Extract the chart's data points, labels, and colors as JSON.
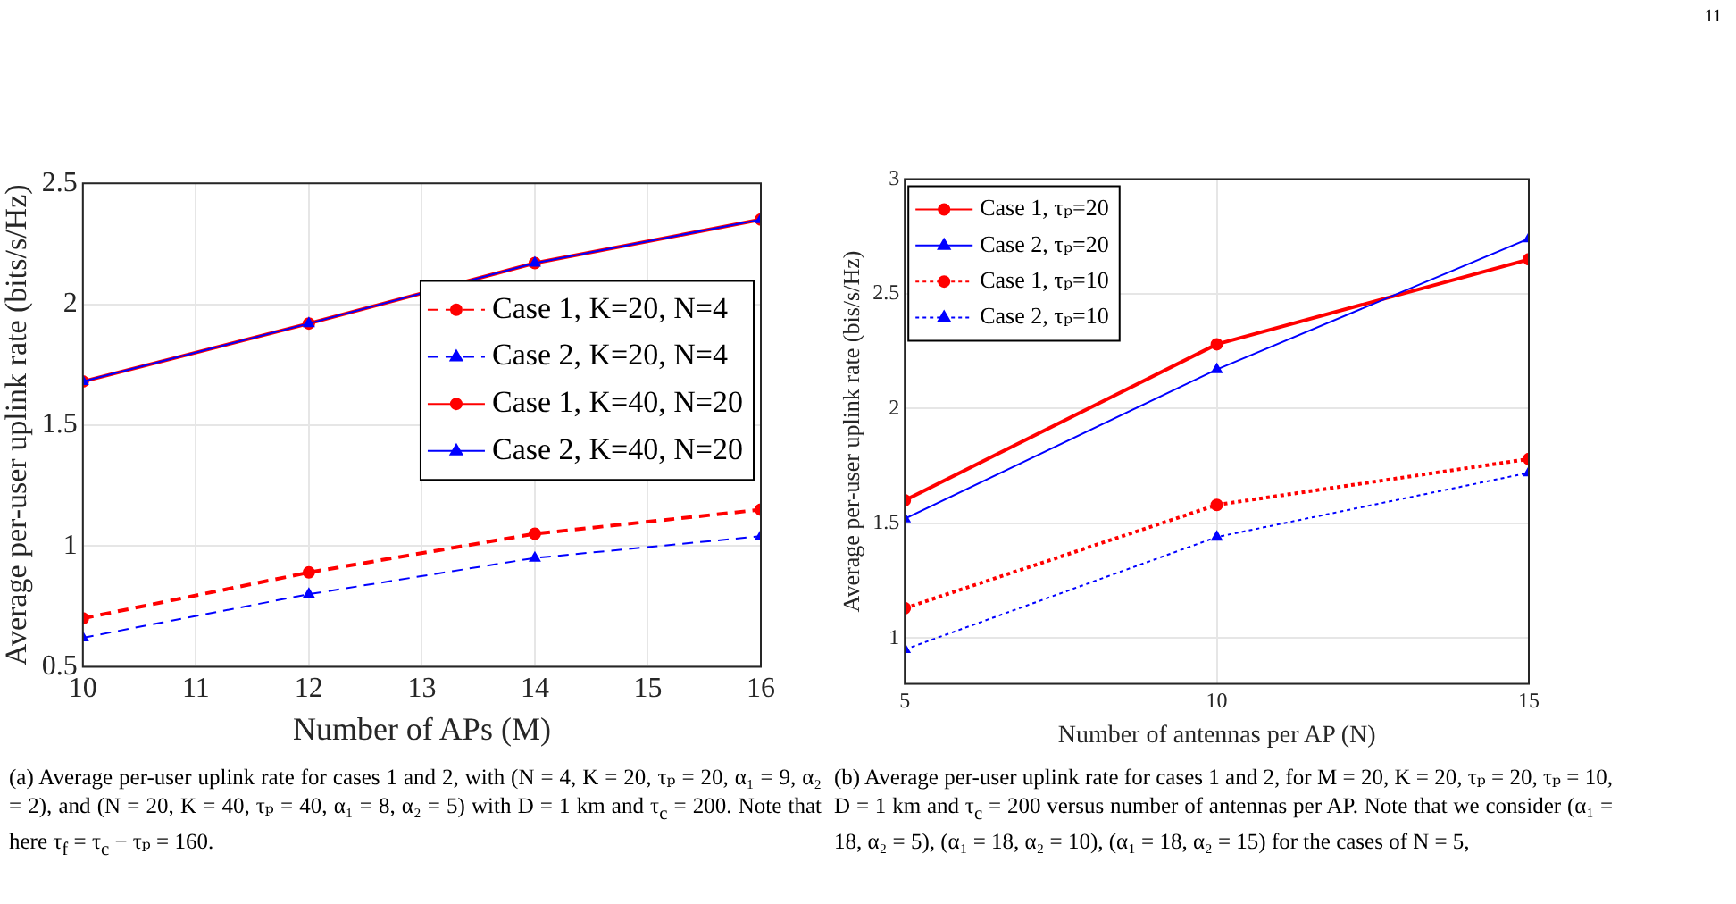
{
  "chart_data": [
    {
      "type": "line",
      "xlabel": "Number of APs (M)",
      "ylabel": "Average per-user uplink rate (bits/s/Hz)",
      "x": [
        10,
        12,
        14,
        16
      ],
      "xlim": [
        10,
        16
      ],
      "xticks": [
        10,
        11,
        12,
        13,
        14,
        15,
        16
      ],
      "ylim": [
        0.5,
        2.5
      ],
      "yticks": [
        0.5,
        1,
        1.5,
        2,
        2.5
      ],
      "grid": true,
      "legend": "right",
      "series": [
        {
          "name": "Case 1, K=20, N=4",
          "color": "#ff0000",
          "values": [
            0.7,
            0.89,
            1.05,
            1.15
          ],
          "marker": "circle",
          "line_style": "dashed"
        },
        {
          "name": "Case 2, K=20, N=4",
          "color": "#0000ff",
          "values": [
            0.62,
            0.8,
            0.95,
            1.04
          ],
          "marker": "triangle",
          "line_style": "dashed"
        },
        {
          "name": "Case 1, K=40, N=20",
          "color": "#ff0000",
          "values": [
            1.68,
            1.92,
            2.17,
            2.35
          ],
          "marker": "circle",
          "line_style": "solid"
        },
        {
          "name": "Case 2, K=40, N=20",
          "color": "#0000ff",
          "values": [
            1.68,
            1.92,
            2.17,
            2.35
          ],
          "marker": "triangle",
          "line_style": "solid"
        }
      ],
      "annotations": [
        "(a) Average per-user uplink rate for cases 1 and 2, with (N = 4, K = 20, τₚ = 20, α₁ = 9, α₂ = 2), and (N = 20, K = 40, τₚ = 40, α₁ = 8, α₂ = 5) with D = 1 km and τ$_{c}$ = 200. Note that here τ$_{f}$ = τ$_{c}$ − τₚ = 160."
      ]
    },
    {
      "type": "line",
      "xlabel": "Number of antennas per AP (N)",
      "ylabel": "Average per-user uplink rate (bis/s/Hz)",
      "x": [
        5,
        10,
        15
      ],
      "xlim": [
        5,
        15
      ],
      "xticks": [
        5,
        10,
        15
      ],
      "ylim": [
        0.8,
        3
      ],
      "yticks": [
        1,
        1.5,
        2,
        2.5,
        3
      ],
      "grid": true,
      "legend": "top left",
      "series": [
        {
          "name": "Case 1, τₚ=20",
          "color": "#ff0000",
          "values": [
            1.6,
            2.28,
            2.65
          ],
          "marker": "circle",
          "line_style": "solid"
        },
        {
          "name": "Case 2, τₚ=20",
          "color": "#0000ff",
          "values": [
            1.52,
            2.17,
            2.74
          ],
          "marker": "triangle",
          "line_style": "solid"
        },
        {
          "name": "Case 1, τₚ=10",
          "color": "#ff0000",
          "values": [
            1.13,
            1.58,
            1.78
          ],
          "marker": "circle",
          "line_style": "dotted"
        },
        {
          "name": "Case 2, τₚ=10",
          "color": "#0000ff",
          "values": [
            0.95,
            1.44,
            1.72
          ],
          "marker": "triangle",
          "line_style": "dotted"
        }
      ],
      "annotations": [
        "(b) Average per-user uplink rate for cases 1 and 2, for M = 20, K = 20, τₚ = 20, τₚ = 10, D = 1 km and τ$_{c}$ = 200 versus number of antennas per AP. Note that we consider (α₁ = 18, α₂ = 5), (α₁ = 18, α₂ = 10), (α₁ = 18, α₂ = 15) for the cases of N = 5,",
        "11"
      ]
    }
  ]
}
